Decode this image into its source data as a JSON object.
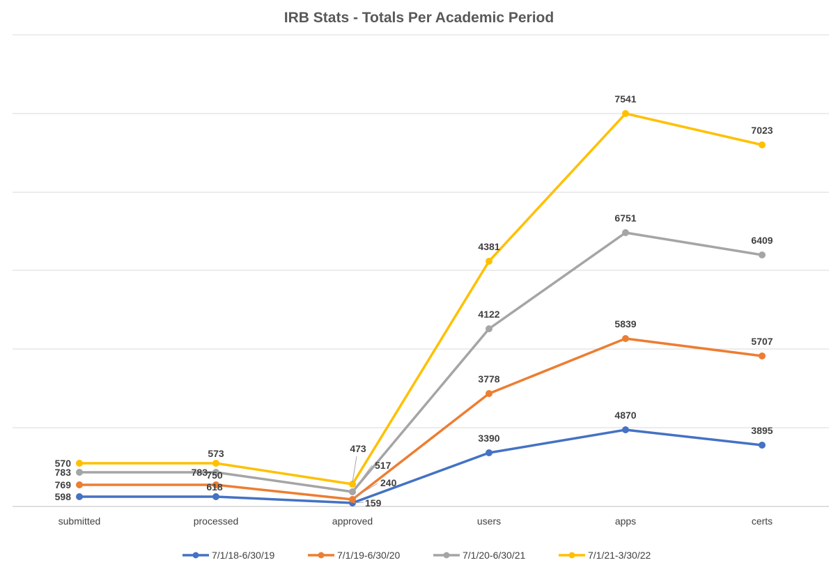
{
  "chart_data": {
    "type": "line",
    "title": "IRB Stats - Totals Per Academic Period",
    "categories": [
      "submitted",
      "processed",
      "approved",
      "users",
      "apps",
      "certs"
    ],
    "series": [
      {
        "name": "7/1/18-6/30/19",
        "color": "#4472C4",
        "values": [
          598,
          618,
          159,
          3390,
          4870,
          3895
        ]
      },
      {
        "name": "7/1/19-6/30/20",
        "color": "#ED7D31",
        "values": [
          769,
          750,
          240,
          3778,
          5839,
          5707
        ]
      },
      {
        "name": "7/1/20-6/30/21",
        "color": "#A5A5A5",
        "values": [
          783,
          783,
          517,
          4122,
          6751,
          6409
        ]
      },
      {
        "name": "7/1/21-3/30/22",
        "color": "#FFC000",
        "values": [
          570,
          573,
          473,
          4381,
          7541,
          7023
        ]
      }
    ],
    "grid": true,
    "legend_position": "bottom"
  }
}
